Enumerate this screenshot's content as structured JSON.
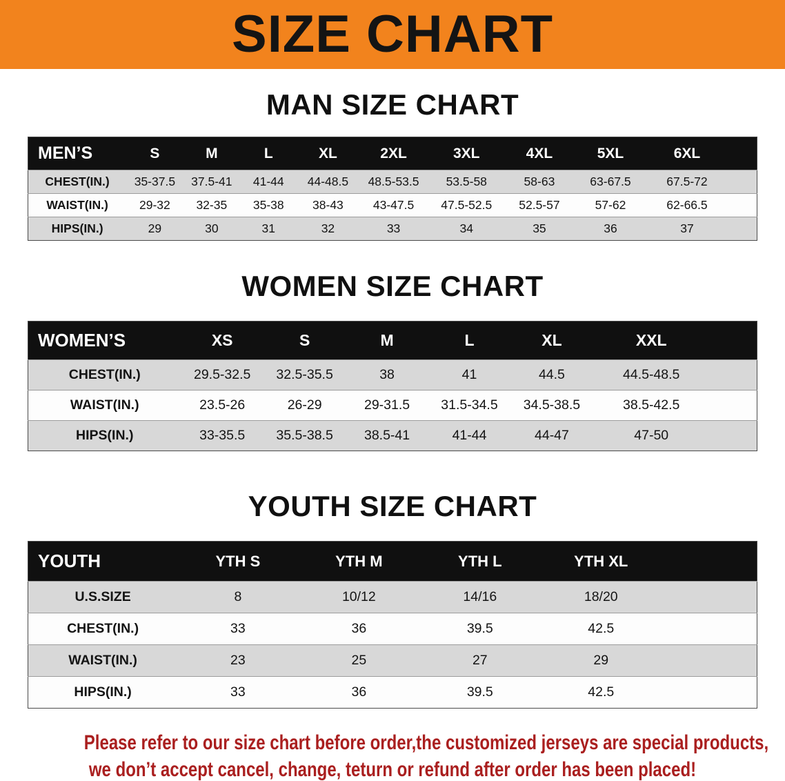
{
  "banner": {
    "title": "SIZE CHART"
  },
  "colors": {
    "banner_bg": "#f2831d",
    "header_bg": "#101010",
    "row_alt": "#d8d8d8",
    "footer_red": "#aa1f1f"
  },
  "sections": [
    {
      "heading": "MAN SIZE CHART",
      "table": {
        "header": [
          "MEN’S",
          "S",
          "M",
          "L",
          "XL",
          "2XL",
          "3XL",
          "4XL",
          "5XL",
          "6XL"
        ],
        "rows": [
          {
            "label": "CHEST(IN.)",
            "values": [
              "35-37.5",
              "37.5-41",
              "41-44",
              "44-48.5",
              "48.5-53.5",
              "53.5-58",
              "58-63",
              "63-67.5",
              "67.5-72"
            ]
          },
          {
            "label": "WAIST(IN.)",
            "values": [
              "29-32",
              "32-35",
              "35-38",
              "38-43",
              "43-47.5",
              "47.5-52.5",
              "52.5-57",
              "57-62",
              "62-66.5"
            ]
          },
          {
            "label": "HIPS(IN.)",
            "values": [
              "29",
              "30",
              "31",
              "32",
              "33",
              "34",
              "35",
              "36",
              "37"
            ]
          }
        ]
      }
    },
    {
      "heading": "WOMEN SIZE CHART",
      "table": {
        "header": [
          "WOMEN’S",
          "XS",
          "S",
          "M",
          "L",
          "XL",
          "XXL"
        ],
        "rows": [
          {
            "label": "CHEST(IN.)",
            "values": [
              "29.5-32.5",
              "32.5-35.5",
              "38",
              "41",
              "44.5",
              "44.5-48.5"
            ]
          },
          {
            "label": "WAIST(IN.)",
            "values": [
              "23.5-26",
              "26-29",
              "29-31.5",
              "31.5-34.5",
              "34.5-38.5",
              "38.5-42.5"
            ]
          },
          {
            "label": "HIPS(IN.)",
            "values": [
              "33-35.5",
              "35.5-38.5",
              "38.5-41",
              "41-44",
              "44-47",
              "47-50"
            ]
          }
        ]
      }
    },
    {
      "heading": "YOUTH SIZE CHART",
      "table": {
        "header": [
          "YOUTH",
          "YTH S",
          "YTH M",
          "YTH L",
          "YTH XL"
        ],
        "rows": [
          {
            "label": "U.S.SIZE",
            "values": [
              "8",
              "10/12",
              "14/16",
              "18/20"
            ]
          },
          {
            "label": "CHEST(IN.)",
            "values": [
              "33",
              "36",
              "39.5",
              "42.5"
            ]
          },
          {
            "label": "WAIST(IN.)",
            "values": [
              "23",
              "25",
              "27",
              "29"
            ]
          },
          {
            "label": "HIPS(IN.)",
            "values": [
              "33",
              "36",
              "39.5",
              "42.5"
            ]
          }
        ]
      }
    }
  ],
  "footer": {
    "lines": [
      "Please refer to our size chart before order,the customized jerseys are special products,",
      "we don’t accept cancel, change, teturn or refund after order has been placed!"
    ]
  }
}
